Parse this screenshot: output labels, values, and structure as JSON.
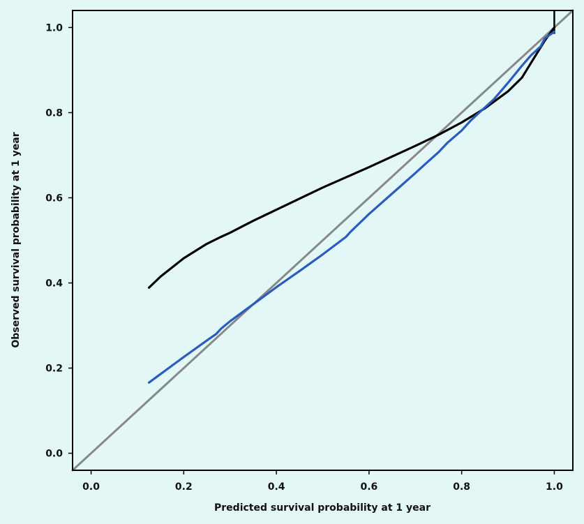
{
  "chart_data": {
    "type": "line",
    "title": "",
    "xlabel": "Predicted survival probability at 1 year",
    "ylabel": "Observed survival probability at 1 year",
    "xlim": [
      -0.04,
      1.04
    ],
    "ylim": [
      -0.04,
      1.04
    ],
    "x_ticks": [
      "0.0",
      "0.2",
      "0.4",
      "0.6",
      "0.8",
      "1.0"
    ],
    "y_ticks": [
      "0.0",
      "0.2",
      "0.4",
      "0.6",
      "0.8",
      "1.0"
    ],
    "grid": false,
    "legend": "none",
    "colors": {
      "black_curve": "#000000",
      "blue_curve": "#2a5bbf",
      "reference_line": "#888888",
      "background": "#e3f7f6"
    },
    "series": [
      {
        "color": "#000000",
        "x": [
          0.125,
          0.15,
          0.2,
          0.25,
          0.28,
          0.3,
          0.35,
          0.4,
          0.45,
          0.5,
          0.55,
          0.6,
          0.65,
          0.7,
          0.75,
          0.8,
          0.85,
          0.9,
          0.93,
          0.96,
          0.98,
          1.0
        ],
        "y": [
          0.389,
          0.415,
          0.458,
          0.492,
          0.508,
          0.518,
          0.546,
          0.572,
          0.598,
          0.624,
          0.648,
          0.672,
          0.697,
          0.722,
          0.748,
          0.777,
          0.81,
          0.85,
          0.882,
          0.935,
          0.97,
          1.0
        ],
        "end_marker": {
          "x": 1.0,
          "y_from": 0.985,
          "y_to": 1.04
        }
      },
      {
        "color": "#2a5bbf",
        "x": [
          0.125,
          0.15,
          0.2,
          0.25,
          0.27,
          0.28,
          0.3,
          0.35,
          0.4,
          0.45,
          0.5,
          0.55,
          0.56,
          0.6,
          0.65,
          0.7,
          0.72,
          0.75,
          0.77,
          0.8,
          0.82,
          0.85,
          0.87,
          0.9,
          0.93,
          0.95,
          0.97,
          0.98,
          1.0
        ],
        "y": [
          0.166,
          0.186,
          0.226,
          0.265,
          0.28,
          0.292,
          0.31,
          0.35,
          0.39,
          0.428,
          0.467,
          0.508,
          0.52,
          0.562,
          0.61,
          0.658,
          0.678,
          0.707,
          0.73,
          0.758,
          0.782,
          0.812,
          0.832,
          0.87,
          0.91,
          0.935,
          0.955,
          0.975,
          0.99
        ]
      },
      {
        "color": "#888888",
        "x": [
          -0.04,
          1.04
        ],
        "y": [
          -0.04,
          1.04
        ]
      }
    ]
  }
}
